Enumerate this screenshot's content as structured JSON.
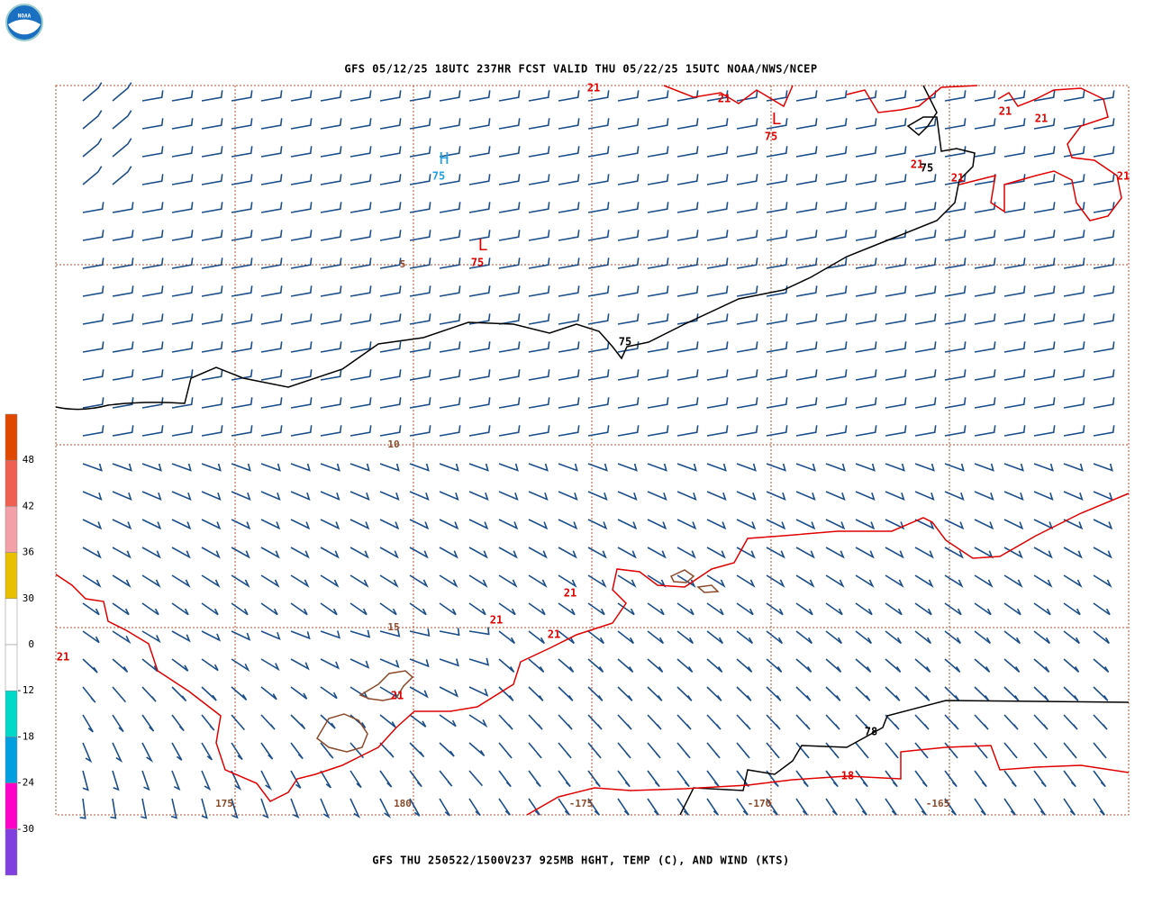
{
  "header": {
    "title": "GFS 05/12/25 18UTC 237HR FCST VALID THU 05/22/25 15UTC NOAA/NWS/NCEP"
  },
  "footer": {
    "caption": "GFS THU 250522/1500V237 925MB HGHT, TEMP (C), AND WIND (KTS)"
  },
  "logo": {
    "text": "NOAA"
  },
  "grid_labels": [
    "5",
    "10",
    "15",
    "175",
    "180",
    "-175",
    "-170",
    "-165"
  ],
  "contour_labels": [
    {
      "text": "21",
      "color": "#e00000"
    },
    {
      "text": "21",
      "color": "#e00000"
    },
    {
      "text": "21",
      "color": "#e00000"
    },
    {
      "text": "21",
      "color": "#e00000"
    },
    {
      "text": "21",
      "color": "#e00000"
    },
    {
      "text": "21",
      "color": "#e00000"
    },
    {
      "text": "21",
      "color": "#e00000"
    },
    {
      "text": "21",
      "color": "#e00000"
    },
    {
      "text": "21",
      "color": "#e00000"
    },
    {
      "text": "21",
      "color": "#e00000"
    },
    {
      "text": "21",
      "color": "#e00000"
    },
    {
      "text": "21",
      "color": "#e00000"
    },
    {
      "text": "75",
      "color": "#000000"
    },
    {
      "text": "75",
      "color": "#000000"
    },
    {
      "text": "18",
      "color": "#e00000"
    },
    {
      "text": "78",
      "color": "#000000"
    }
  ],
  "centers": [
    {
      "symbol": "H",
      "value": "75",
      "color": "#20a0e0"
    },
    {
      "symbol": "L",
      "value": "75",
      "color": "#e00000"
    },
    {
      "symbol": "L",
      "value": "75",
      "color": "#e00000"
    }
  ],
  "colorbar": {
    "labels": [
      "48",
      "42",
      "36",
      "30",
      "0",
      "-12",
      "-18",
      "-24",
      "-30"
    ],
    "colors": [
      "#e04800",
      "#f06050",
      "#f4a0a8",
      "#e8c000",
      "#ffffff",
      "#ffffff",
      "#00d8c8",
      "#00a0e0",
      "#ff00c8",
      "#8040e0"
    ]
  }
}
